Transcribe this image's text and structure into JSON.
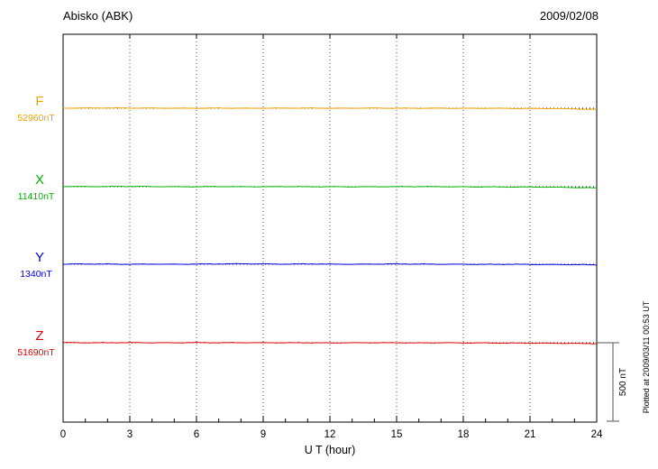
{
  "header": {
    "station": "Abisko (ABK)",
    "date": "2009/02/08"
  },
  "annotations": {
    "scale_bar_label": "500 nT",
    "plotted_at": "Plotted at 2009/03/11 00:53 UT"
  },
  "chart_data": {
    "type": "line",
    "title": "Abisko (ABK)",
    "date": "2009/02/08",
    "xlabel": "U T (hour)",
    "xlim": [
      0,
      24
    ],
    "xticks": [
      0,
      3,
      6,
      9,
      12,
      15,
      18,
      21,
      24
    ],
    "grid": "vertical-dotted",
    "scale_bar_nT": 500,
    "scale_bar_label": "500 nT",
    "x_hours": [
      0,
      1,
      2,
      3,
      4,
      5,
      6,
      7,
      8,
      9,
      10,
      11,
      12,
      13,
      14,
      15,
      16,
      17,
      18,
      19,
      20,
      21,
      22,
      23,
      24
    ],
    "series": [
      {
        "name": "F",
        "color": "#F2A200",
        "baseline_nT": 52960,
        "baseline_label": "52960nT",
        "values": [
          52961,
          52961,
          52962,
          52961,
          52961,
          52960,
          52960,
          52961,
          52960,
          52960,
          52961,
          52961,
          52960,
          52960,
          52961,
          52960,
          52960,
          52960,
          52959,
          52960,
          52959,
          52958,
          52958,
          52956,
          52952
        ]
      },
      {
        "name": "X",
        "color": "#00B400",
        "baseline_nT": 11410,
        "baseline_label": "11410nT",
        "values": [
          11412,
          11411,
          11411,
          11412,
          11411,
          11410,
          11410,
          11411,
          11410,
          11410,
          11411,
          11410,
          11410,
          11409,
          11410,
          11410,
          11411,
          11410,
          11409,
          11409,
          11408,
          11408,
          11407,
          11405,
          11402
        ]
      },
      {
        "name": "Y",
        "color": "#0000E0",
        "baseline_nT": 1340,
        "baseline_label": "1340nT",
        "values": [
          1341,
          1342,
          1341,
          1340,
          1341,
          1340,
          1341,
          1342,
          1343,
          1342,
          1341,
          1342,
          1341,
          1340,
          1341,
          1342,
          1341,
          1340,
          1340,
          1339,
          1340,
          1339,
          1338,
          1338,
          1336
        ]
      },
      {
        "name": "Z",
        "color": "#E00000",
        "baseline_nT": 51690,
        "baseline_label": "51690nT",
        "values": [
          51691,
          51690,
          51690,
          51691,
          51690,
          51690,
          51691,
          51690,
          51691,
          51690,
          51690,
          51690,
          51689,
          51690,
          51690,
          51690,
          51689,
          51690,
          51689,
          51689,
          51688,
          51688,
          51687,
          51686,
          51684
        ]
      }
    ]
  }
}
